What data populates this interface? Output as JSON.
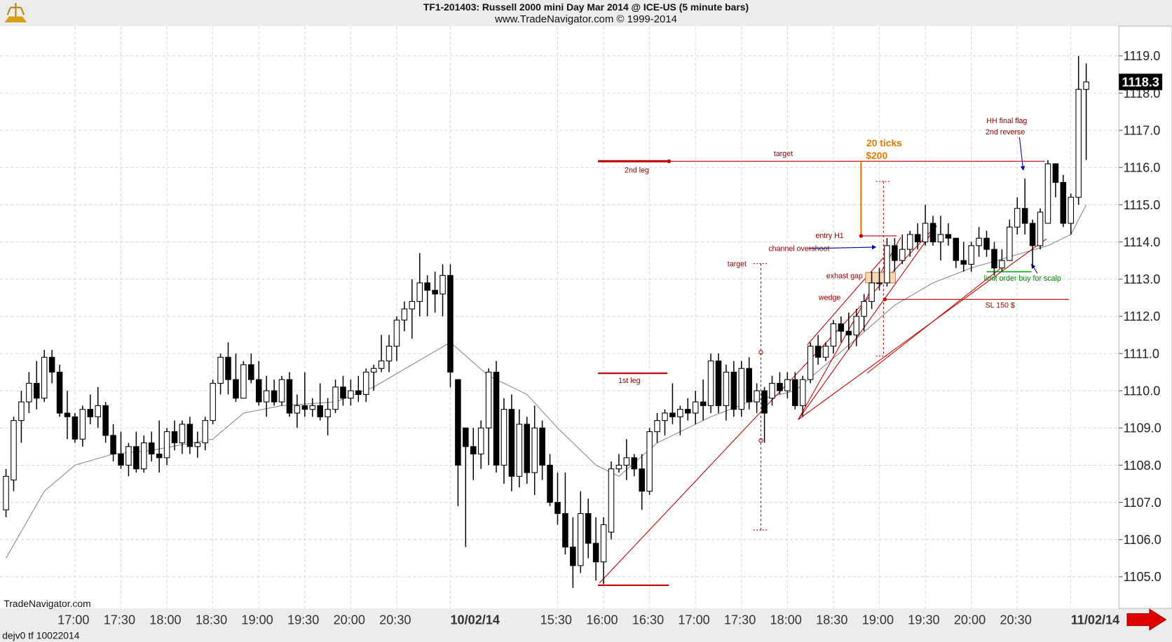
{
  "header": {
    "title": "TF1-201403:  Russell 2000 mini Day Mar 2014 @ ICE-US  (5 minute bars)",
    "subtitle": "www.TradeNavigator.com © 1999-2014"
  },
  "footer": {
    "brand": "TradeNavigator.com",
    "file": "dejv0 tf 10022014"
  },
  "chart_data": {
    "type": "candlestick",
    "up_color": "#ffffff",
    "down_color": "#000000",
    "grid": true,
    "ylim": [
      1104.15,
      1119.8
    ],
    "yticks": [
      {
        "value": 1105,
        "label": "1105.0"
      },
      {
        "value": 1106,
        "label": "1106.0"
      },
      {
        "value": 1107,
        "label": "1107.0"
      },
      {
        "value": 1108,
        "label": "1108.0"
      },
      {
        "value": 1109,
        "label": "1109.0"
      },
      {
        "value": 1110,
        "label": "1110.0"
      },
      {
        "value": 1111,
        "label": "1111.0"
      },
      {
        "value": 1112,
        "label": "1112.0"
      },
      {
        "value": 1113,
        "label": "1113.0"
      },
      {
        "value": 1114,
        "label": "1114.0"
      },
      {
        "value": 1115,
        "label": "1115.0"
      },
      {
        "value": 1116,
        "label": "1116.0"
      },
      {
        "value": 1117,
        "label": "1117.0"
      },
      {
        "value": 1118,
        "label": "1118.0"
      },
      {
        "value": 1119,
        "label": "1119.0"
      }
    ],
    "last_price": 1118.3,
    "categories": [
      null,
      null,
      null,
      null,
      null,
      null,
      null,
      null,
      null,
      "17:00",
      null,
      null,
      null,
      null,
      null,
      "17:30",
      null,
      null,
      null,
      null,
      null,
      "18:00",
      null,
      null,
      null,
      null,
      null,
      "18:30",
      null,
      null,
      null,
      null,
      null,
      "19:00",
      null,
      null,
      null,
      null,
      null,
      "19:30",
      null,
      null,
      null,
      null,
      null,
      "20:00",
      null,
      null,
      null,
      null,
      null,
      "20:30",
      null,
      null,
      null,
      null,
      null,
      null,
      "10/02/14",
      null,
      null,
      null,
      null,
      null,
      null,
      null,
      null,
      null,
      null,
      null,
      null,
      null,
      "15:30",
      null,
      null,
      null,
      null,
      null,
      "16:00",
      null,
      null,
      null,
      null,
      null,
      "16:30",
      null,
      null,
      null,
      null,
      null,
      "17:00",
      null,
      null,
      null,
      null,
      null,
      "17:30",
      null,
      null,
      null,
      null,
      null,
      "18:00",
      null,
      null,
      null,
      null,
      null,
      "18:30",
      null,
      null,
      null,
      null,
      null,
      "19:00",
      null,
      null,
      null,
      null,
      null,
      "19:30",
      null,
      null,
      null,
      null,
      null,
      "20:00",
      null,
      null,
      null,
      null,
      null,
      "20:30",
      null,
      null,
      null,
      null,
      null,
      null,
      "11/02/14",
      null,
      null
    ],
    "ohlc": [
      [
        1106.8,
        1107.9,
        1106.6,
        1107.7
      ],
      [
        1107.6,
        1109.3,
        1107.3,
        1109.2
      ],
      [
        1109.2,
        1110.0,
        1108.6,
        1109.7
      ],
      [
        1109.7,
        1110.5,
        1109.4,
        1110.2
      ],
      [
        1110.2,
        1110.8,
        1109.5,
        1109.8
      ],
      [
        1109.8,
        1111.1,
        1109.7,
        1110.9
      ],
      [
        1110.9,
        1111.1,
        1110.2,
        1110.5
      ],
      [
        1110.5,
        1110.7,
        1109.3,
        1109.4
      ],
      [
        1109.4,
        1110.0,
        1108.7,
        1109.3
      ],
      [
        1109.3,
        1109.4,
        1108.6,
        1108.7
      ],
      [
        1108.7,
        1109.6,
        1108.5,
        1109.5
      ],
      [
        1109.5,
        1109.9,
        1109.1,
        1109.3
      ],
      [
        1109.3,
        1110.1,
        1109.0,
        1109.6
      ],
      [
        1109.6,
        1109.7,
        1108.6,
        1108.8
      ],
      [
        1108.8,
        1109.1,
        1108.1,
        1108.3
      ],
      [
        1108.3,
        1108.9,
        1107.9,
        1108.0
      ],
      [
        1108.0,
        1108.6,
        1107.7,
        1108.5
      ],
      [
        1108.5,
        1108.9,
        1107.8,
        1107.9
      ],
      [
        1107.9,
        1108.8,
        1107.8,
        1108.6
      ],
      [
        1108.6,
        1108.9,
        1108.1,
        1108.3
      ],
      [
        1108.3,
        1109.2,
        1107.8,
        1108.2
      ],
      [
        1108.2,
        1109.0,
        1108.0,
        1108.9
      ],
      [
        1108.9,
        1109.2,
        1108.4,
        1108.6
      ],
      [
        1108.6,
        1109.2,
        1108.3,
        1109.1
      ],
      [
        1109.1,
        1109.3,
        1108.3,
        1108.5
      ],
      [
        1108.5,
        1108.9,
        1108.2,
        1108.6
      ],
      [
        1108.6,
        1109.3,
        1108.4,
        1109.2
      ],
      [
        1109.2,
        1110.3,
        1109.1,
        1110.2
      ],
      [
        1110.2,
        1111.0,
        1109.9,
        1110.9
      ],
      [
        1110.9,
        1111.3,
        1109.9,
        1110.3
      ],
      [
        1110.3,
        1111.0,
        1109.7,
        1109.8
      ],
      [
        1109.8,
        1110.8,
        1109.8,
        1110.7
      ],
      [
        1110.7,
        1111.0,
        1110.2,
        1110.3
      ],
      [
        1110.3,
        1110.8,
        1109.6,
        1109.7
      ],
      [
        1109.7,
        1110.4,
        1109.3,
        1110.0
      ],
      [
        1110.0,
        1110.3,
        1109.6,
        1109.7
      ],
      [
        1109.7,
        1110.4,
        1109.6,
        1110.3
      ],
      [
        1110.3,
        1110.5,
        1109.3,
        1109.4
      ],
      [
        1109.4,
        1109.9,
        1109.0,
        1109.6
      ],
      [
        1109.6,
        1110.5,
        1109.3,
        1109.5
      ],
      [
        1109.5,
        1109.8,
        1109.3,
        1109.6
      ],
      [
        1109.6,
        1110.2,
        1109.2,
        1109.3
      ],
      [
        1109.3,
        1109.8,
        1108.8,
        1109.5
      ],
      [
        1109.5,
        1110.3,
        1109.4,
        1110.1
      ],
      [
        1110.1,
        1110.4,
        1109.6,
        1109.8
      ],
      [
        1109.8,
        1110.3,
        1109.6,
        1110.0
      ],
      [
        1110.0,
        1110.4,
        1109.7,
        1109.9
      ],
      [
        1109.9,
        1110.6,
        1109.7,
        1110.5
      ],
      [
        1110.5,
        1110.7,
        1110.0,
        1110.6
      ],
      [
        1110.6,
        1111.5,
        1110.5,
        1110.8
      ],
      [
        1110.8,
        1111.5,
        1110.5,
        1111.2
      ],
      [
        1111.2,
        1112.0,
        1110.8,
        1111.9
      ],
      [
        1111.9,
        1112.4,
        1111.6,
        1112.2
      ],
      [
        1112.2,
        1113.0,
        1111.4,
        1112.4
      ],
      [
        1112.4,
        1113.7,
        1112.0,
        1112.9
      ],
      [
        1112.9,
        1113.1,
        1112.0,
        1112.7
      ],
      [
        1112.7,
        1113.2,
        1112.1,
        1112.6
      ],
      [
        1112.6,
        1113.4,
        1112.0,
        1113.1
      ],
      [
        1113.1,
        1113.4,
        1110.1,
        1110.5
      ],
      [
        1110.3,
        1110.3,
        1106.9,
        1108.0
      ],
      [
        1109.0,
        1109.0,
        1105.8,
        1108.5
      ],
      [
        1108.5,
        1109.0,
        1107.6,
        1108.3
      ],
      [
        1108.3,
        1109.2,
        1107.9,
        1109.0
      ],
      [
        1109.0,
        1110.6,
        1108.0,
        1110.5
      ],
      [
        1110.5,
        1110.8,
        1107.8,
        1108.0
      ],
      [
        1108.0,
        1109.8,
        1107.5,
        1109.5
      ],
      [
        1109.5,
        1109.9,
        1107.3,
        1107.7
      ],
      [
        1107.7,
        1109.5,
        1107.4,
        1109.1
      ],
      [
        1109.1,
        1109.3,
        1107.5,
        1107.8
      ],
      [
        1107.8,
        1109.6,
        1107.2,
        1109.0
      ],
      [
        1109.0,
        1109.2,
        1107.6,
        1108.0
      ],
      [
        1108.0,
        1108.3,
        1106.9,
        1107.0
      ],
      [
        1107.0,
        1107.8,
        1106.4,
        1106.7
      ],
      [
        1106.7,
        1107.8,
        1105.6,
        1105.8
      ],
      [
        1105.8,
        1106.6,
        1104.7,
        1105.3
      ],
      [
        1105.3,
        1107.3,
        1105.1,
        1106.7
      ],
      [
        1106.7,
        1107.1,
        1105.5,
        1105.9
      ],
      [
        1105.9,
        1106.6,
        1104.9,
        1105.4
      ],
      [
        1105.4,
        1106.6,
        1104.8,
        1106.4
      ],
      [
        1106.2,
        1108.1,
        1106.0,
        1107.9
      ],
      [
        1107.9,
        1108.3,
        1107.8,
        1108.0
      ],
      [
        1108.0,
        1108.7,
        1107.6,
        1108.2
      ],
      [
        1108.2,
        1108.3,
        1107.7,
        1107.9
      ],
      [
        1107.9,
        1108.3,
        1106.8,
        1107.3
      ],
      [
        1107.3,
        1109.0,
        1107.2,
        1108.9
      ],
      [
        1108.9,
        1109.4,
        1108.6,
        1109.2
      ],
      [
        1109.2,
        1109.5,
        1108.8,
        1109.4
      ],
      [
        1109.4,
        1110.2,
        1109.1,
        1109.3
      ],
      [
        1109.3,
        1109.6,
        1108.8,
        1109.5
      ],
      [
        1109.5,
        1109.8,
        1109.2,
        1109.4
      ],
      [
        1109.4,
        1110.0,
        1109.1,
        1109.7
      ],
      [
        1109.7,
        1110.3,
        1109.2,
        1109.6
      ],
      [
        1109.6,
        1111.0,
        1109.4,
        1110.8
      ],
      [
        1110.8,
        1111.0,
        1109.4,
        1109.6
      ],
      [
        1109.6,
        1110.7,
        1109.2,
        1110.5
      ],
      [
        1110.5,
        1110.8,
        1109.3,
        1109.5
      ],
      [
        1109.5,
        1110.8,
        1109.3,
        1110.6
      ],
      [
        1110.6,
        1110.9,
        1109.5,
        1109.7
      ],
      [
        1109.7,
        1110.2,
        1109.4,
        1110.0
      ],
      [
        1110.0,
        1110.1,
        1108.6,
        1109.4
      ],
      [
        1109.8,
        1110.4,
        1109.6,
        1110.2
      ],
      [
        1110.2,
        1110.5,
        1109.9,
        1110.0
      ],
      [
        1110.0,
        1110.5,
        1109.8,
        1110.3
      ],
      [
        1110.3,
        1110.5,
        1109.5,
        1109.6
      ],
      [
        1109.6,
        1110.4,
        1109.3,
        1110.3
      ],
      [
        1110.3,
        1111.3,
        1110.2,
        1111.2
      ],
      [
        1111.2,
        1111.5,
        1110.7,
        1110.9
      ],
      [
        1110.9,
        1111.3,
        1110.8,
        1111.2
      ],
      [
        1111.2,
        1111.9,
        1111.0,
        1111.8
      ],
      [
        1111.8,
        1112.0,
        1111.3,
        1111.6
      ],
      [
        1111.6,
        1112.1,
        1111.1,
        1111.5
      ],
      [
        1111.5,
        1112.2,
        1111.2,
        1112.0
      ],
      [
        1112.0,
        1112.6,
        1111.6,
        1112.4
      ],
      [
        1112.4,
        1113.2,
        1112.2,
        1112.9
      ],
      [
        1112.9,
        1113.3,
        1112.7,
        1112.9
      ],
      [
        1112.9,
        1114.1,
        1112.8,
        1113.9
      ],
      [
        1113.9,
        1114.1,
        1113.2,
        1113.5
      ],
      [
        1113.5,
        1114.2,
        1113.4,
        1113.8
      ],
      [
        1113.8,
        1114.3,
        1113.6,
        1114.2
      ],
      [
        1114.2,
        1114.5,
        1113.8,
        1114.0
      ],
      [
        1114.0,
        1115.0,
        1113.9,
        1114.5
      ],
      [
        1114.5,
        1114.7,
        1113.9,
        1114.0
      ],
      [
        1114.0,
        1114.7,
        1113.5,
        1114.2
      ],
      [
        1114.2,
        1114.5,
        1113.9,
        1114.1
      ],
      [
        1114.1,
        1114.1,
        1113.3,
        1113.5
      ],
      [
        1113.5,
        1114.0,
        1113.2,
        1113.4
      ],
      [
        1113.4,
        1114.0,
        1113.2,
        1113.9
      ],
      [
        1113.9,
        1114.4,
        1113.6,
        1114.1
      ],
      [
        1114.1,
        1114.3,
        1113.6,
        1113.8
      ],
      [
        1113.8,
        1114.0,
        1113.1,
        1113.3
      ],
      [
        1113.3,
        1113.8,
        1113.2,
        1113.5
      ],
      [
        1113.5,
        1114.6,
        1113.5,
        1114.4
      ],
      [
        1114.4,
        1115.2,
        1114.2,
        1114.9
      ],
      [
        1114.9,
        1115.7,
        1114.2,
        1114.5
      ],
      [
        1114.5,
        1114.6,
        1113.3,
        1113.9
      ],
      [
        1113.9,
        1114.9,
        1113.8,
        1114.8
      ],
      [
        1114.5,
        1116.2,
        1114.5,
        1116.1
      ],
      [
        1116.1,
        1116.1,
        1115.2,
        1115.6
      ],
      [
        1115.6,
        1115.8,
        1114.4,
        1114.5
      ],
      [
        1114.5,
        1115.3,
        1114.2,
        1115.2
      ],
      [
        1115.2,
        1119.0,
        1115.0,
        1118.1
      ],
      [
        1118.1,
        1118.8,
        1116.2,
        1118.3
      ]
    ],
    "moving_average": {
      "color": "#888888",
      "x": [
        0,
        5,
        9,
        14,
        19,
        27,
        31,
        36,
        43,
        48,
        53,
        58,
        63,
        68,
        72,
        77,
        80,
        85,
        92,
        97,
        103,
        107,
        111,
        116,
        121,
        126,
        131,
        136,
        139,
        141
      ],
      "values": [
        1105.5,
        1107.3,
        1108.0,
        1108.3,
        1108.4,
        1108.7,
        1109.4,
        1109.6,
        1109.7,
        1110.1,
        1110.7,
        1111.3,
        1110.4,
        1109.9,
        1109.0,
        1108.0,
        1107.7,
        1108.6,
        1109.3,
        1109.7,
        1110.0,
        1110.7,
        1111.4,
        1112.3,
        1112.9,
        1113.3,
        1113.6,
        1113.9,
        1114.2,
        1115.0
      ]
    },
    "annotations": [
      {
        "text": "target",
        "color": "#8b0000"
      },
      {
        "text": "2nd leg",
        "color": "#8b0000"
      },
      {
        "text": "20 ticks",
        "color": "#e07b00"
      },
      {
        "text": "$200",
        "color": "#e07b00"
      },
      {
        "text": "HH final flag",
        "color": "#8b0000"
      },
      {
        "text": "2nd reverse",
        "color": "#8b0000"
      },
      {
        "text": "entry H1",
        "color": "#8b0000"
      },
      {
        "text": "channel overshoot",
        "color": "#8b0000"
      },
      {
        "text": "target",
        "color": "#8b0000"
      },
      {
        "text": "exhast gap",
        "color": "#8b0000"
      },
      {
        "text": "wedge",
        "color": "#8b0000"
      },
      {
        "text": "limit order buy for scalp",
        "color": "#008000"
      },
      {
        "text": "SL 150 $",
        "color": "#8b0000"
      },
      {
        "text": "1st leg",
        "color": "#8b0000"
      }
    ]
  }
}
